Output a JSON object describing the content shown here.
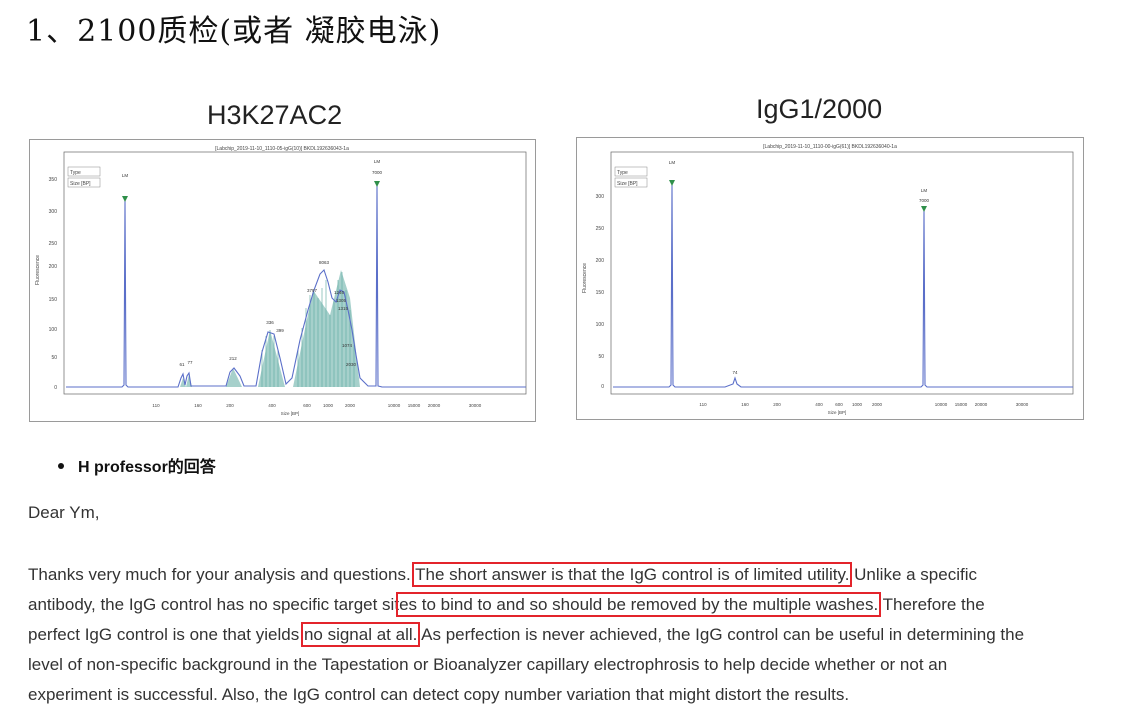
{
  "heading": "1、2100质检(或者 凝胶电泳)",
  "figures": {
    "left_title": "H3K27AC2",
    "right_title": "IgG1/2000",
    "left_header": "[Labchip_2019-11-10_1110-05-igG(10)]  BKDL192636043-1a",
    "right_header": "[Labchip_2019-11-10_1110-00-igG(61)]  BKDL192636040-1a",
    "legend_type": "Type",
    "legend_size": "Size [BP]",
    "ylabel": "Fluorescence",
    "xlabel": "Size [BP]",
    "marker_label": "LM",
    "upper_marker": "7000",
    "left_yticks": [
      "350",
      "300",
      "250",
      "200",
      "150",
      "100",
      "50",
      "0"
    ],
    "right_yticks": [
      "300",
      "250",
      "200",
      "150",
      "100",
      "50",
      "0"
    ],
    "xticks": [
      "110",
      "160",
      "200",
      "400",
      "600",
      "1000",
      "2000",
      "10000",
      "15000",
      "20000",
      "30000"
    ],
    "left_peak_labels": [
      "61",
      "77",
      "212",
      "336",
      "399",
      "3797",
      "8063",
      "1246",
      "1305",
      "1315",
      "1074",
      "2030"
    ],
    "right_peak_labels": [
      "74"
    ]
  },
  "bullet": "H professor的回答",
  "greeting": "Dear Ym,",
  "paragraph": {
    "l1a": "Thanks very much for your analysis and questions.",
    "l1b": "The short answer is that the IgG control is of limited utility.",
    "l1c": "Unlike a specific",
    "l2a": "antibody, the IgG control has no specific target sit",
    "l2b": "es to bind to and so should be removed by the multiple washes.",
    "l2c": "Therefore the",
    "l3a": "perfect IgG control is one that yields",
    "l3b": "no signal at all.",
    "l3c": "As perfection is never achieved, the IgG control can be useful in determining the",
    "l4": "level of non-specific background in the Tapestation or Bioanalyzer capillary electrophrosis to help decide whether or not an",
    "l5": "experiment is successful. Also, the IgG control can detect copy number variation that might distort the results."
  },
  "colors": {
    "highlight_box": "#e3242b",
    "trace": "#5b6fc9",
    "fill": "#5faaa2",
    "marker": "#2f8f4a"
  }
}
